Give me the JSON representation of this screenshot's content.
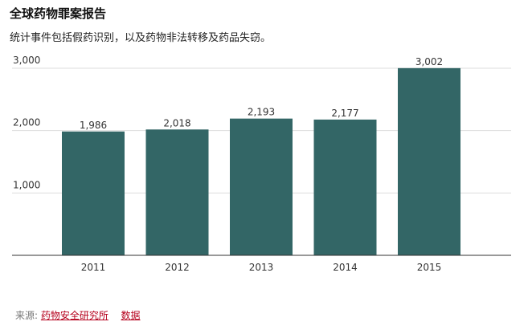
{
  "header": {
    "title": "全球药物罪案报告",
    "subtitle": "统计事件包括假药识别，以及药物非法转移及药品失窃。"
  },
  "footer": {
    "source_label": "来源:",
    "source_link": "药物安全研究所",
    "data_link": "数据"
  },
  "colors": {
    "bar": "#336666",
    "grid": "#dddddd",
    "axis": "#333333",
    "link": "#b5001c"
  },
  "chart_data": {
    "type": "bar",
    "title": "全球药物罪案报告",
    "subtitle": "统计事件包括假药识别，以及药物非法转移及药品失窃。",
    "categories": [
      "2011",
      "2012",
      "2013",
      "2014",
      "2015"
    ],
    "values": [
      1986,
      2018,
      2193,
      2177,
      3002
    ],
    "value_labels": [
      "1,986",
      "2,018",
      "2,193",
      "2,177",
      "3,002"
    ],
    "yticks": [
      1000,
      2000,
      3000
    ],
    "ytick_labels": [
      "1,000",
      "2,000",
      "3,000"
    ],
    "ylim": [
      0,
      3000
    ],
    "xlabel": "",
    "ylabel": "",
    "grid": true,
    "legend": "none"
  }
}
